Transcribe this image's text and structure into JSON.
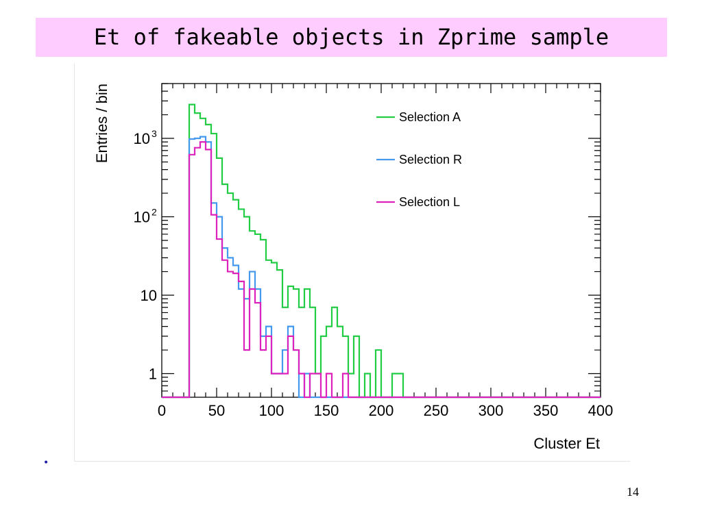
{
  "slide": {
    "title": "Et of fakeable objects in Zprime sample",
    "bullet": "•",
    "page_number": "14"
  },
  "chart_data": {
    "type": "histogram",
    "title": "",
    "xlabel": "Cluster Et",
    "ylabel": "Entries / bin",
    "xlim": [
      0,
      400
    ],
    "ylim": [
      0.5,
      5000
    ],
    "log_y": true,
    "grid": false,
    "legend_position": "top-right",
    "bin_width": 5,
    "x_ticks": [
      {
        "value": 0,
        "label": "0"
      },
      {
        "value": 50,
        "label": "50"
      },
      {
        "value": 100,
        "label": "100"
      },
      {
        "value": 150,
        "label": "150"
      },
      {
        "value": 200,
        "label": "200"
      },
      {
        "value": 250,
        "label": "250"
      },
      {
        "value": 300,
        "label": "300"
      },
      {
        "value": 350,
        "label": "350"
      },
      {
        "value": 400,
        "label": "400"
      }
    ],
    "y_ticks": [
      {
        "value": 1,
        "label": "1",
        "sup": ""
      },
      {
        "value": 10,
        "label": "10",
        "sup": ""
      },
      {
        "value": 100,
        "label": "10",
        "sup": "2"
      },
      {
        "value": 1000,
        "label": "10",
        "sup": "3"
      }
    ],
    "series": [
      {
        "name": "Selection A",
        "color": "#22cc44",
        "bins": [
          [
            25,
            30,
            2700
          ],
          [
            30,
            35,
            2100
          ],
          [
            35,
            40,
            1800
          ],
          [
            40,
            45,
            1500
          ],
          [
            45,
            50,
            1150
          ],
          [
            50,
            55,
            560
          ],
          [
            55,
            60,
            260
          ],
          [
            60,
            65,
            200
          ],
          [
            65,
            70,
            165
          ],
          [
            70,
            75,
            125
          ],
          [
            75,
            80,
            100
          ],
          [
            80,
            85,
            66
          ],
          [
            85,
            90,
            60
          ],
          [
            90,
            95,
            51
          ],
          [
            95,
            100,
            28
          ],
          [
            100,
            105,
            26
          ],
          [
            105,
            110,
            21
          ],
          [
            110,
            115,
            7
          ],
          [
            115,
            120,
            13
          ],
          [
            120,
            125,
            12
          ],
          [
            125,
            130,
            7
          ],
          [
            130,
            135,
            12
          ],
          [
            135,
            140,
            7
          ],
          [
            140,
            145,
            1
          ],
          [
            145,
            150,
            3
          ],
          [
            150,
            155,
            4
          ],
          [
            155,
            160,
            7
          ],
          [
            160,
            165,
            4
          ],
          [
            165,
            170,
            3
          ],
          [
            170,
            175,
            1
          ],
          [
            175,
            180,
            3
          ],
          [
            180,
            185,
            0
          ],
          [
            185,
            190,
            1
          ],
          [
            190,
            195,
            0
          ],
          [
            195,
            200,
            2
          ],
          [
            200,
            205,
            0
          ],
          [
            205,
            210,
            0
          ],
          [
            210,
            215,
            1
          ],
          [
            215,
            220,
            1
          ]
        ]
      },
      {
        "name": "Selection R",
        "color": "#4499ee",
        "bins": [
          [
            25,
            30,
            980
          ],
          [
            30,
            35,
            1000
          ],
          [
            35,
            40,
            1050
          ],
          [
            40,
            45,
            900
          ],
          [
            45,
            50,
            150
          ],
          [
            50,
            55,
            100
          ],
          [
            55,
            60,
            40
          ],
          [
            60,
            65,
            30
          ],
          [
            65,
            70,
            24
          ],
          [
            70,
            75,
            12
          ],
          [
            75,
            80,
            9
          ],
          [
            80,
            85,
            20
          ],
          [
            85,
            90,
            12
          ],
          [
            90,
            95,
            3
          ],
          [
            95,
            100,
            4
          ],
          [
            100,
            105,
            1
          ],
          [
            105,
            110,
            1
          ],
          [
            110,
            115,
            2
          ],
          [
            115,
            120,
            4
          ],
          [
            120,
            125,
            2
          ],
          [
            125,
            130,
            0
          ],
          [
            130,
            135,
            1
          ],
          [
            135,
            140,
            0
          ]
        ]
      },
      {
        "name": "Selection L",
        "color": "#dd22bb",
        "bins": [
          [
            25,
            30,
            620
          ],
          [
            30,
            35,
            760
          ],
          [
            35,
            40,
            900
          ],
          [
            40,
            45,
            720
          ],
          [
            45,
            50,
            106
          ],
          [
            50,
            55,
            52
          ],
          [
            55,
            60,
            28
          ],
          [
            60,
            65,
            20
          ],
          [
            65,
            70,
            19
          ],
          [
            70,
            75,
            15
          ],
          [
            75,
            80,
            2
          ],
          [
            80,
            85,
            12
          ],
          [
            85,
            90,
            8
          ],
          [
            90,
            95,
            2
          ],
          [
            95,
            100,
            3
          ],
          [
            100,
            105,
            1
          ],
          [
            105,
            110,
            1
          ],
          [
            110,
            115,
            1
          ],
          [
            115,
            120,
            3
          ],
          [
            120,
            125,
            2
          ],
          [
            125,
            130,
            1
          ],
          [
            130,
            135,
            0
          ],
          [
            135,
            140,
            1
          ],
          [
            140,
            145,
            1
          ],
          [
            145,
            150,
            0
          ],
          [
            150,
            155,
            1
          ],
          [
            155,
            160,
            0
          ],
          [
            160,
            165,
            0
          ],
          [
            165,
            170,
            1
          ],
          [
            170,
            175,
            0
          ]
        ]
      }
    ]
  }
}
